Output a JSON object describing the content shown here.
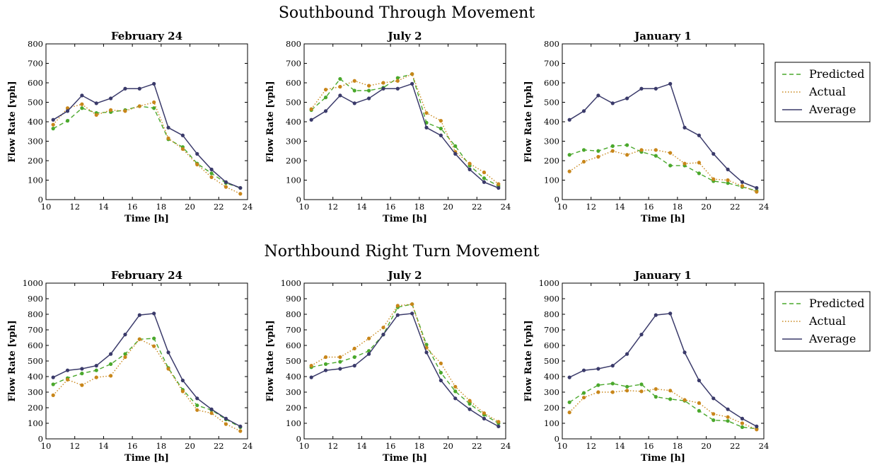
{
  "colors": {
    "predicted": "#4aa82c",
    "actual": "#c8861a",
    "average": "#3a3a6a"
  },
  "legend": {
    "predicted": "Predicted",
    "actual": "Actual",
    "average": "Average",
    "placement": "right"
  },
  "sections": [
    {
      "title": "Southbound Through Movement"
    },
    {
      "title": "Northbound Right Turn Movement"
    }
  ],
  "chart_data": [
    {
      "type": "line",
      "row": 0,
      "col": 0,
      "title": "February 24",
      "xlabel": "Time [h]",
      "ylabel": "Flow Rate [vph]",
      "xlim": [
        10,
        24
      ],
      "ylim": [
        0,
        800
      ],
      "xticks": [
        10,
        12,
        14,
        16,
        18,
        20,
        22,
        24
      ],
      "yticks": [
        0,
        100,
        200,
        300,
        400,
        500,
        600,
        700,
        800
      ],
      "x": [
        10.5,
        11.5,
        12.5,
        13.5,
        14.5,
        15.5,
        16.5,
        17.5,
        18.5,
        19.5,
        20.5,
        21.5,
        22.5,
        23.5
      ],
      "series": [
        {
          "name": "Predicted",
          "style": "dashed",
          "values": [
            365,
            405,
            470,
            445,
            450,
            460,
            480,
            470,
            310,
            270,
            185,
            135,
            85,
            60
          ]
        },
        {
          "name": "Actual",
          "style": "dotted",
          "values": [
            385,
            470,
            490,
            435,
            460,
            455,
            480,
            500,
            315,
            260,
            180,
            115,
            65,
            30
          ]
        },
        {
          "name": "Average",
          "style": "solid",
          "values": [
            410,
            455,
            535,
            495,
            520,
            570,
            570,
            595,
            370,
            330,
            235,
            155,
            90,
            60
          ]
        }
      ]
    },
    {
      "type": "line",
      "row": 0,
      "col": 1,
      "title": "July 2",
      "xlabel": "Time [h]",
      "ylabel": "Flow Rate [vph]",
      "xlim": [
        10,
        24
      ],
      "ylim": [
        0,
        800
      ],
      "xticks": [
        10,
        12,
        14,
        16,
        18,
        20,
        22,
        24
      ],
      "yticks": [
        0,
        100,
        200,
        300,
        400,
        500,
        600,
        700,
        800
      ],
      "x": [
        10.5,
        11.5,
        12.5,
        13.5,
        14.5,
        15.5,
        16.5,
        17.5,
        18.5,
        19.5,
        20.5,
        21.5,
        22.5,
        23.5
      ],
      "series": [
        {
          "name": "Predicted",
          "style": "dashed",
          "values": [
            460,
            525,
            620,
            560,
            560,
            575,
            625,
            645,
            395,
            365,
            275,
            175,
            110,
            70
          ]
        },
        {
          "name": "Actual",
          "style": "dotted",
          "values": [
            465,
            565,
            580,
            610,
            585,
            600,
            610,
            645,
            445,
            405,
            245,
            185,
            140,
            80
          ]
        },
        {
          "name": "Average",
          "style": "solid",
          "values": [
            410,
            455,
            535,
            495,
            520,
            570,
            570,
            595,
            370,
            330,
            235,
            155,
            90,
            60
          ]
        }
      ]
    },
    {
      "type": "line",
      "row": 0,
      "col": 2,
      "title": "January 1",
      "xlabel": "Time [h]",
      "ylabel": "Flow Rate [vph]",
      "xlim": [
        10,
        24
      ],
      "ylim": [
        0,
        800
      ],
      "xticks": [
        10,
        12,
        14,
        16,
        18,
        20,
        22,
        24
      ],
      "yticks": [
        0,
        100,
        200,
        300,
        400,
        500,
        600,
        700,
        800
      ],
      "x": [
        10.5,
        11.5,
        12.5,
        13.5,
        14.5,
        15.5,
        16.5,
        17.5,
        18.5,
        19.5,
        20.5,
        21.5,
        22.5,
        23.5
      ],
      "series": [
        {
          "name": "Predicted",
          "style": "dashed",
          "values": [
            230,
            255,
            250,
            275,
            280,
            245,
            225,
            175,
            175,
            135,
            95,
            85,
            65,
            45
          ]
        },
        {
          "name": "Actual",
          "style": "dotted",
          "values": [
            145,
            195,
            220,
            250,
            230,
            255,
            255,
            240,
            185,
            190,
            105,
            100,
            70,
            40
          ]
        },
        {
          "name": "Average",
          "style": "solid",
          "values": [
            410,
            455,
            535,
            495,
            520,
            570,
            570,
            595,
            370,
            330,
            235,
            155,
            90,
            60
          ]
        }
      ]
    },
    {
      "type": "line",
      "row": 1,
      "col": 0,
      "title": "February 24",
      "xlabel": "Time [h]",
      "ylabel": "Flow Rate [vph]",
      "xlim": [
        10,
        24
      ],
      "ylim": [
        0,
        1000
      ],
      "xticks": [
        10,
        12,
        14,
        16,
        18,
        20,
        22,
        24
      ],
      "yticks": [
        0,
        100,
        200,
        300,
        400,
        500,
        600,
        700,
        800,
        900,
        1000
      ],
      "x": [
        10.5,
        11.5,
        12.5,
        13.5,
        14.5,
        15.5,
        16.5,
        17.5,
        18.5,
        19.5,
        20.5,
        21.5,
        22.5,
        23.5
      ],
      "series": [
        {
          "name": "Predicted",
          "style": "dashed",
          "values": [
            350,
            390,
            420,
            440,
            480,
            545,
            640,
            645,
            455,
            315,
            215,
            185,
            125,
            75
          ]
        },
        {
          "name": "Actual",
          "style": "dotted",
          "values": [
            280,
            380,
            345,
            395,
            405,
            525,
            640,
            595,
            450,
            305,
            185,
            165,
            95,
            50
          ]
        },
        {
          "name": "Average",
          "style": "solid",
          "values": [
            395,
            440,
            450,
            470,
            545,
            670,
            795,
            805,
            555,
            375,
            260,
            190,
            130,
            80
          ]
        }
      ]
    },
    {
      "type": "line",
      "row": 1,
      "col": 1,
      "title": "July 2",
      "xlabel": "Time [h]",
      "ylabel": "Flow Rate [vph]",
      "xlim": [
        10,
        24
      ],
      "ylim": [
        0,
        1000
      ],
      "xticks": [
        10,
        12,
        14,
        16,
        18,
        20,
        22,
        24
      ],
      "yticks": [
        0,
        100,
        200,
        300,
        400,
        500,
        600,
        700,
        800,
        900,
        1000
      ],
      "x": [
        10.5,
        11.5,
        12.5,
        13.5,
        14.5,
        15.5,
        16.5,
        17.5,
        18.5,
        19.5,
        20.5,
        21.5,
        22.5,
        23.5
      ],
      "series": [
        {
          "name": "Predicted",
          "style": "dashed",
          "values": [
            460,
            480,
            495,
            525,
            565,
            670,
            845,
            865,
            605,
            425,
            305,
            225,
            155,
            100
          ]
        },
        {
          "name": "Actual",
          "style": "dotted",
          "values": [
            470,
            525,
            525,
            580,
            645,
            715,
            855,
            865,
            585,
            485,
            335,
            245,
            165,
            110
          ]
        },
        {
          "name": "Average",
          "style": "solid",
          "values": [
            395,
            440,
            450,
            470,
            545,
            670,
            795,
            805,
            555,
            375,
            260,
            190,
            130,
            80
          ]
        }
      ]
    },
    {
      "type": "line",
      "row": 1,
      "col": 2,
      "title": "January 1",
      "xlabel": "Time [h]",
      "ylabel": "Flow Rate [vph]",
      "xlim": [
        10,
        24
      ],
      "ylim": [
        0,
        1000
      ],
      "xticks": [
        10,
        12,
        14,
        16,
        18,
        20,
        22,
        24
      ],
      "yticks": [
        0,
        100,
        200,
        300,
        400,
        500,
        600,
        700,
        800,
        900,
        1000
      ],
      "x": [
        10.5,
        11.5,
        12.5,
        13.5,
        14.5,
        15.5,
        16.5,
        17.5,
        18.5,
        19.5,
        20.5,
        21.5,
        22.5,
        23.5
      ],
      "series": [
        {
          "name": "Predicted",
          "style": "dashed",
          "values": [
            235,
            295,
            345,
            355,
            335,
            350,
            270,
            255,
            245,
            180,
            120,
            115,
            75,
            65
          ]
        },
        {
          "name": "Actual",
          "style": "dotted",
          "values": [
            170,
            265,
            300,
            300,
            310,
            305,
            320,
            310,
            250,
            230,
            160,
            140,
            100,
            60
          ]
        },
        {
          "name": "Average",
          "style": "solid",
          "values": [
            395,
            440,
            450,
            470,
            545,
            670,
            795,
            805,
            555,
            375,
            260,
            190,
            130,
            80
          ]
        }
      ]
    }
  ]
}
